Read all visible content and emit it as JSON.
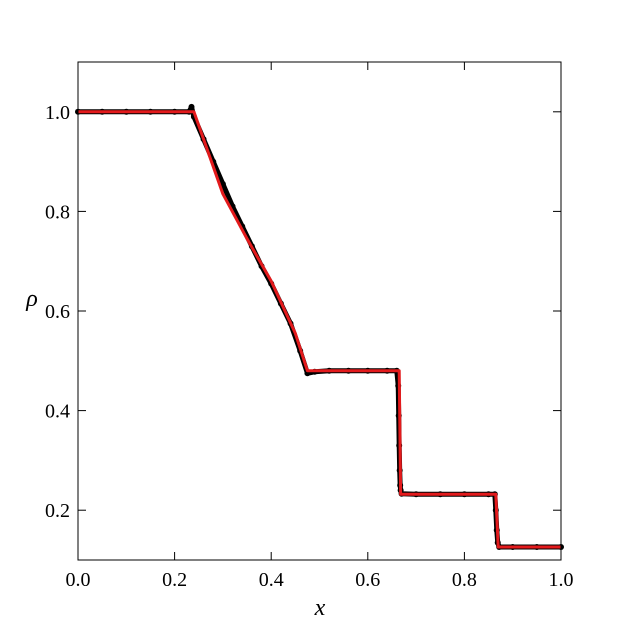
{
  "chart_data": {
    "type": "line",
    "xlabel": "x",
    "ylabel": "ρ",
    "xlim": [
      0,
      1
    ],
    "ylim": [
      0.1,
      1.1
    ],
    "xticks": [
      {
        "value": 0,
        "label": "0.0"
      },
      0.2,
      0.4,
      0.6,
      0.8,
      {
        "value": 1,
        "label": "1.0"
      }
    ],
    "yticks": [
      0.2,
      0.4,
      0.6,
      0.8,
      {
        "value": 1,
        "label": "1.0"
      }
    ],
    "series": [
      {
        "color": "#000000",
        "markers": true,
        "x": [
          0,
          0.05,
          0.1,
          0.15,
          0.2,
          0.23,
          0.235,
          0.24,
          0.26,
          0.28,
          0.3,
          0.32,
          0.34,
          0.36,
          0.38,
          0.4,
          0.42,
          0.44,
          0.46,
          0.475,
          0.49,
          0.52,
          0.56,
          0.6,
          0.64,
          0.66,
          0.663,
          0.664,
          0.665,
          0.666,
          0.667,
          0.668,
          0.67,
          0.7,
          0.75,
          0.8,
          0.85,
          0.863,
          0.865,
          0.867,
          0.869,
          0.872,
          0.9,
          0.95,
          1.0
        ],
        "values": [
          1,
          1,
          1,
          1,
          1,
          1,
          1.01,
          0.99,
          0.945,
          0.9,
          0.855,
          0.81,
          0.77,
          0.73,
          0.69,
          0.655,
          0.615,
          0.575,
          0.52,
          0.475,
          0.478,
          0.48,
          0.48,
          0.48,
          0.48,
          0.48,
          0.45,
          0.39,
          0.33,
          0.28,
          0.25,
          0.24,
          0.233,
          0.232,
          0.232,
          0.232,
          0.232,
          0.232,
          0.2,
          0.16,
          0.135,
          0.126,
          0.126,
          0.126,
          0.126
        ]
      },
      {
        "color": "#e31a1c",
        "markers": false,
        "x": [
          0,
          0.23,
          0.24,
          0.3,
          0.35,
          0.4,
          0.45,
          0.475,
          0.665,
          0.668,
          0.865,
          0.87,
          1.0
        ],
        "values": [
          1,
          1,
          1,
          0.835,
          0.745,
          0.66,
          0.555,
          0.48,
          0.48,
          0.232,
          0.232,
          0.126,
          0.126
        ]
      }
    ]
  }
}
